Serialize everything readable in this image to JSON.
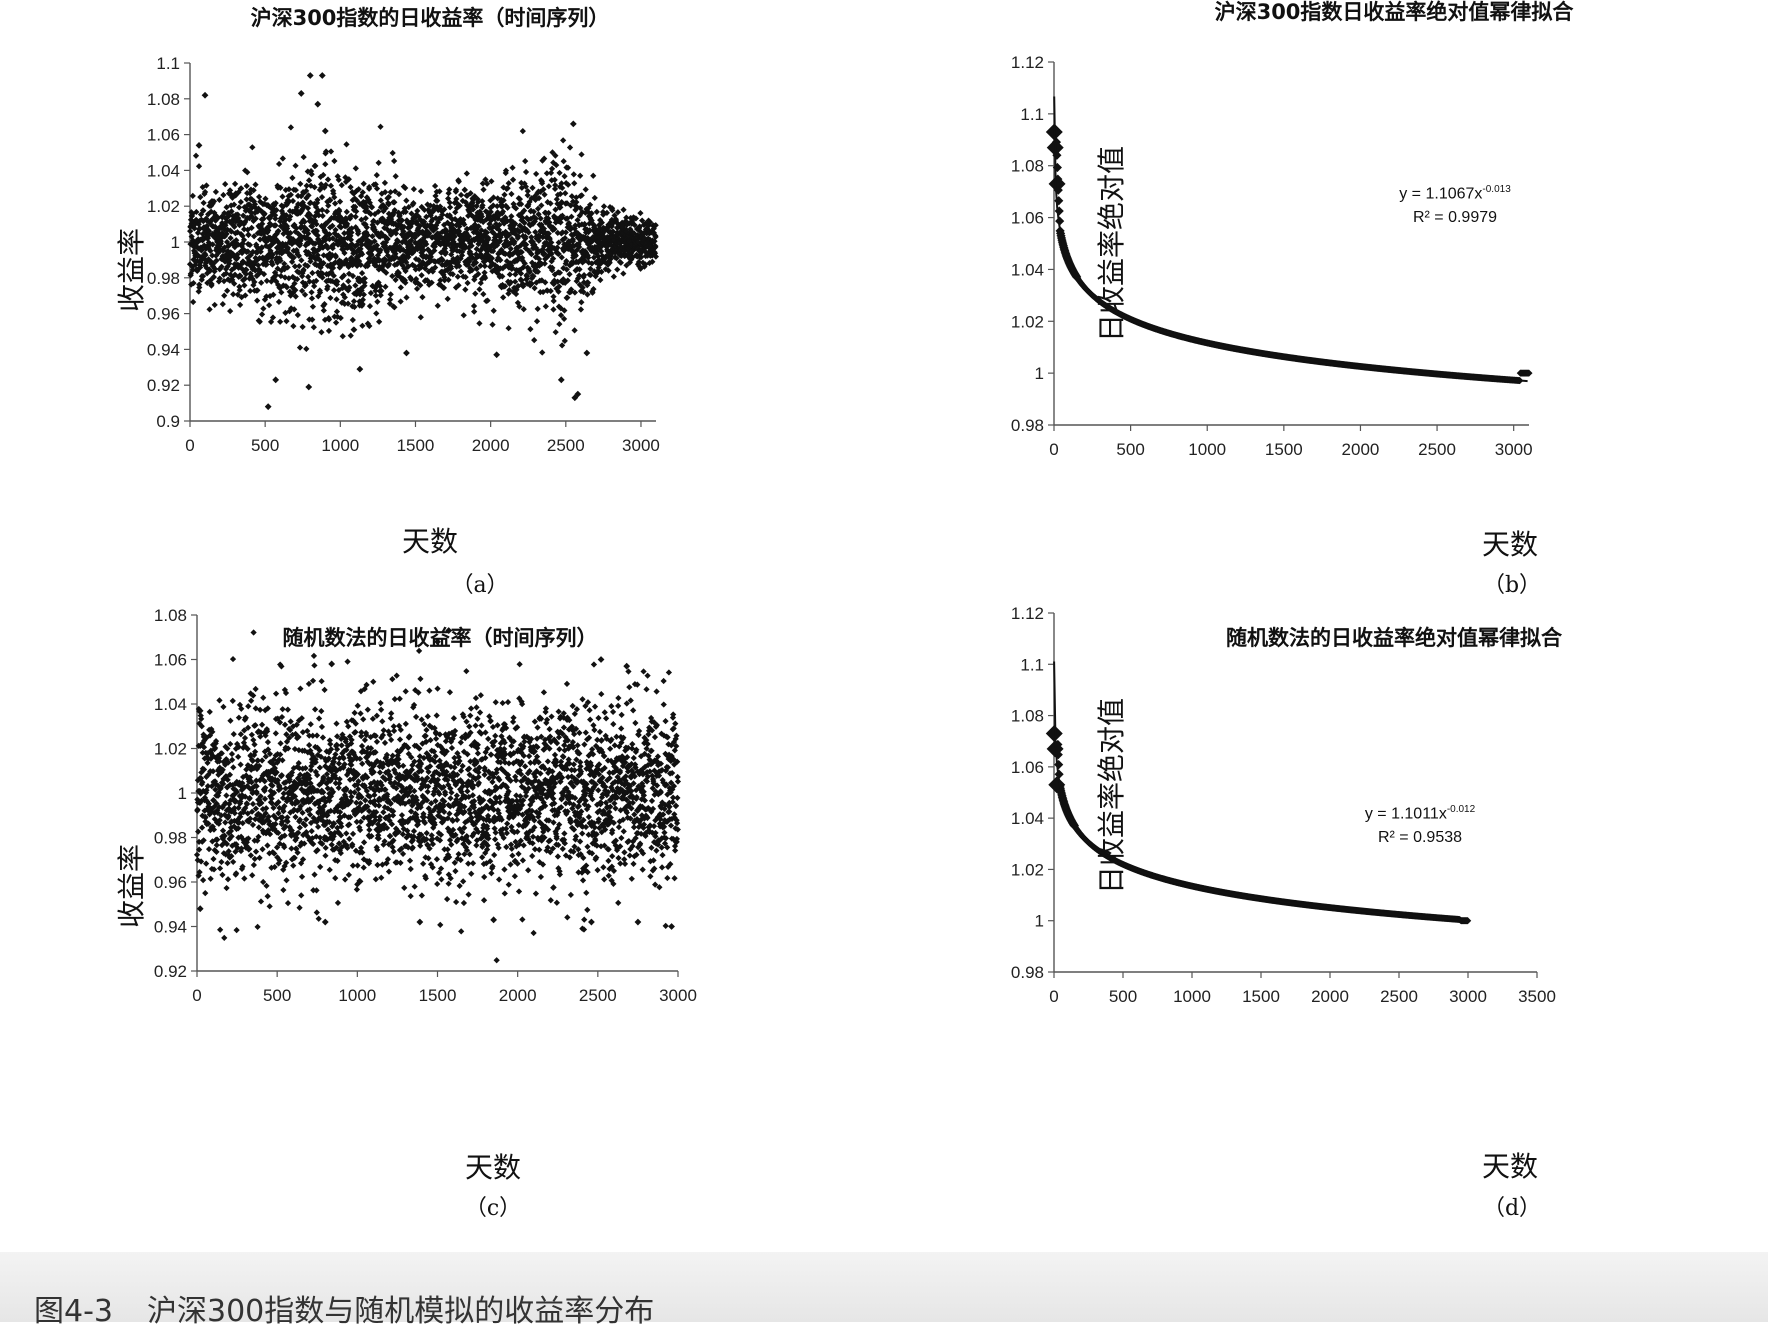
{
  "caption": {
    "number": "图4-3",
    "text": "沪深300指数与随机模拟的收益率分布"
  },
  "colors": {
    "marker": "#111111",
    "axis": "#555555",
    "caption_bg": "#ececec"
  },
  "chart_data": [
    {
      "id": "a",
      "type": "scatter",
      "title": "沪深300指数的日收益率（时间序列）",
      "xlabel": "天数",
      "ylabel": "收益率",
      "sublabel": "（a）",
      "xlim": [
        0,
        3100
      ],
      "ylim": [
        0.9,
        1.1
      ],
      "xticks": [
        0,
        500,
        1000,
        1500,
        2000,
        2500,
        3000
      ],
      "yticks": [
        0.9,
        0.92,
        0.94,
        0.96,
        0.98,
        1,
        1.02,
        1.04,
        1.06,
        1.08,
        1.1
      ],
      "series": [
        {
          "n_points": 3100,
          "center": 1.0,
          "volatility_profile": [
            [
              0,
              0.013
            ],
            [
              500,
              0.02
            ],
            [
              1000,
              0.022
            ],
            [
              1500,
              0.013
            ],
            [
              2000,
              0.015
            ],
            [
              2500,
              0.024
            ],
            [
              2750,
              0.008
            ],
            [
              3100,
              0.006
            ]
          ],
          "notable_points": [
            [
              60,
              1.054
            ],
            [
              100,
              1.082
            ],
            [
              520,
              0.908
            ],
            [
              740,
              1.083
            ],
            [
              800,
              1.093
            ],
            [
              880,
              1.093
            ],
            [
              850,
              1.077
            ],
            [
              900,
              1.062
            ],
            [
              2560,
              0.913
            ],
            [
              2580,
              0.915
            ],
            [
              2550,
              1.066
            ],
            [
              570,
              0.923
            ],
            [
              790,
              0.919
            ],
            [
              1130,
              0.929
            ],
            [
              1440,
              0.938
            ],
            [
              2040,
              0.937
            ],
            [
              2470,
              0.923
            ],
            [
              2640,
              0.938
            ]
          ]
        }
      ]
    },
    {
      "id": "b",
      "type": "scatter",
      "title": "沪深300指数日收益率绝对值幂律拟合",
      "xlabel": "天数",
      "ylabel": "日收益率绝对值",
      "sublabel": "（b）",
      "xlim": [
        0,
        3100
      ],
      "ylim": [
        0.98,
        1.12
      ],
      "xticks": [
        0,
        500,
        1000,
        1500,
        2000,
        2500,
        3000
      ],
      "yticks": [
        0.98,
        1,
        1.02,
        1.04,
        1.06,
        1.08,
        1.1,
        1.12
      ],
      "fit": {
        "equation": "y = 1.1067x",
        "exponent": "-0.013",
        "r2": "R² = 0.9979",
        "a": 1.1067,
        "b": -0.013
      },
      "series": [
        {
          "n_points": 3100,
          "max_value": 1.093,
          "end_value": 1.0
        }
      ]
    },
    {
      "id": "c",
      "type": "scatter",
      "title": "随机数法的日收益率（时间序列）",
      "xlabel": "天数",
      "ylabel": "收益率",
      "sublabel": "（c）",
      "xlim": [
        0,
        3000
      ],
      "ylim": [
        0.92,
        1.08
      ],
      "xticks": [
        0,
        500,
        1000,
        1500,
        2000,
        2500,
        3000
      ],
      "yticks": [
        0.92,
        0.94,
        0.96,
        0.98,
        1,
        1.02,
        1.04,
        1.06,
        1.08
      ],
      "series": [
        {
          "n_points": 3000,
          "center": 1.0,
          "volatility_profile": [
            [
              0,
              0.02
            ],
            [
              3000,
              0.02
            ]
          ],
          "notable_points": [
            [
              1500,
              1.068
            ],
            [
              1570,
              1.073
            ],
            [
              2520,
              1.06
            ],
            [
              2680,
              1.057
            ],
            [
              840,
              1.058
            ],
            [
              20,
              0.948
            ],
            [
              800,
              0.942
            ],
            [
              1390,
              0.942
            ],
            [
              1850,
              0.943
            ],
            [
              2460,
              0.942
            ],
            [
              2750,
              0.942
            ],
            [
              2960,
              0.94
            ]
          ]
        }
      ]
    },
    {
      "id": "d",
      "type": "scatter",
      "title": "随机数法的日收益率绝对值幂律拟合",
      "xlabel": "天数",
      "ylabel": "日收益率绝对值",
      "sublabel": "（d）",
      "xlim": [
        0,
        3500
      ],
      "ylim": [
        0.98,
        1.12
      ],
      "xticks": [
        0,
        500,
        1000,
        1500,
        2000,
        2500,
        3000,
        3500
      ],
      "yticks": [
        0.98,
        1,
        1.02,
        1.04,
        1.06,
        1.08,
        1.1,
        1.12
      ],
      "fit": {
        "equation": "y = 1.1011x",
        "exponent": "-0.012",
        "r2": "R² = 0.9538",
        "a": 1.1011,
        "b": -0.012
      },
      "series": [
        {
          "n_points": 3000,
          "max_value": 1.073,
          "end_value": 1.0
        }
      ]
    }
  ]
}
